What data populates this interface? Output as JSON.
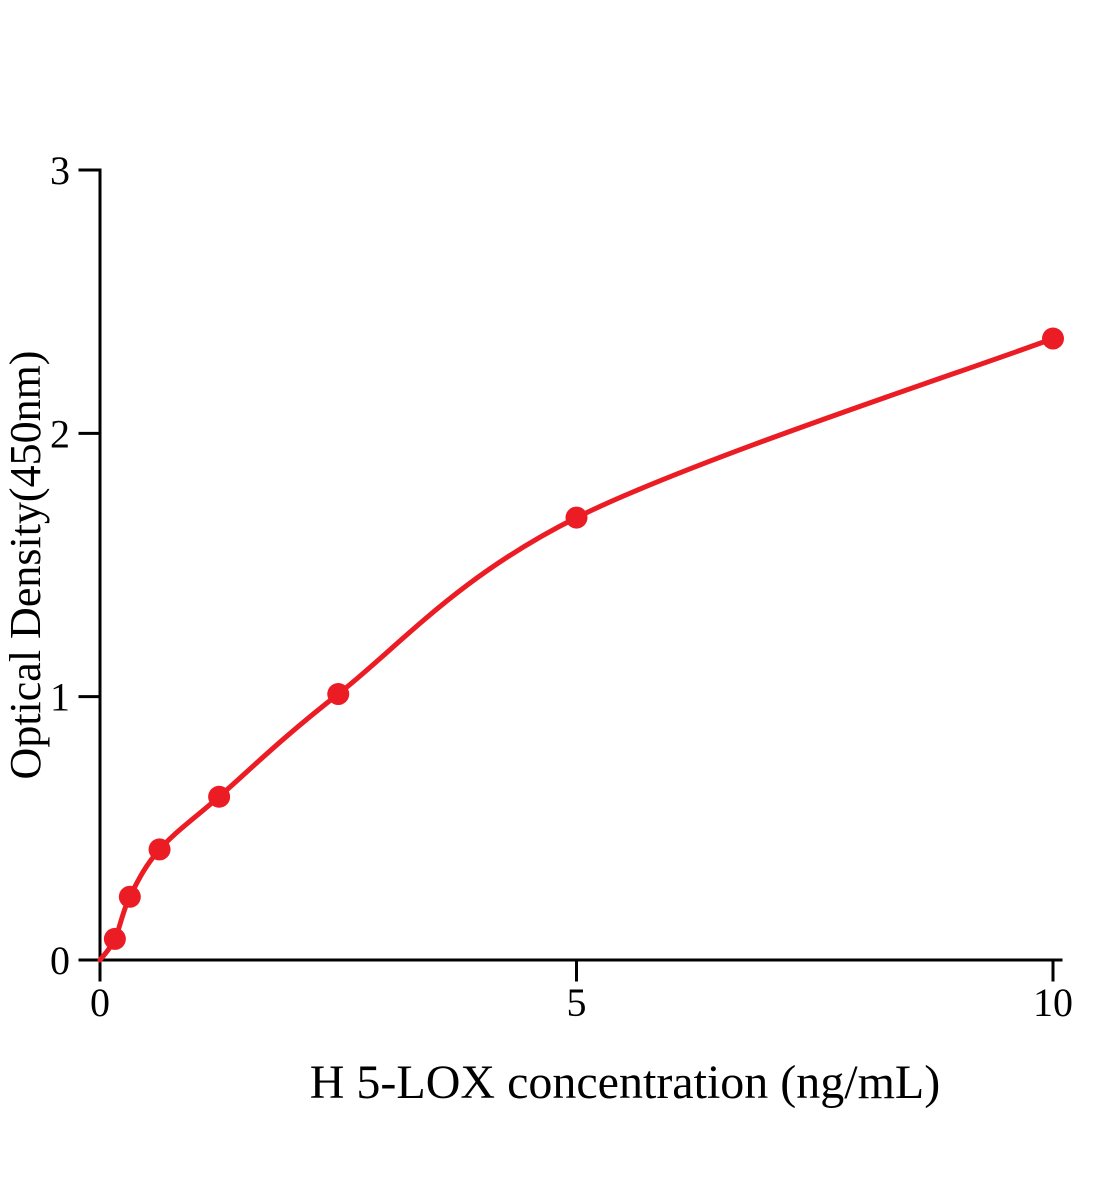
{
  "chart_data": {
    "type": "scatter",
    "title": "",
    "xlabel": "H 5-LOX concentration (ng/mL)",
    "ylabel": "Optical Density(450nm)",
    "x": [
      0.156,
      0.313,
      0.625,
      1.25,
      2.5,
      5,
      10
    ],
    "y": [
      0.08,
      0.24,
      0.42,
      0.62,
      1.01,
      1.68,
      2.36
    ],
    "curve_start": [
      0,
      0
    ],
    "xlim": [
      0,
      10
    ],
    "ylim": [
      0,
      3
    ],
    "x_ticks": [
      0,
      5,
      10
    ],
    "y_ticks": [
      0,
      1,
      2,
      3
    ],
    "grid": false,
    "legend": "none",
    "point_color": "#ec1c24",
    "curve_color": "#ec1c24",
    "axis_color": "#000000"
  }
}
